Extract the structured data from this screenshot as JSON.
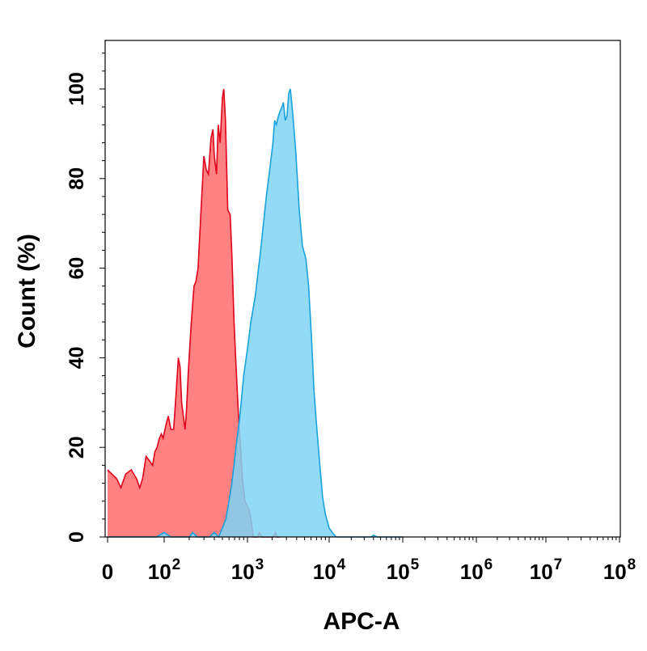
{
  "chart_data": {
    "type": "area",
    "title": "",
    "xlabel": "APC-A",
    "ylabel": "Count  (%)",
    "x_scale": "biexponential",
    "ylim": [
      0,
      100
    ],
    "grid": false,
    "legend": "none",
    "y_ticks": [
      "0",
      "20",
      "40",
      "60",
      "80",
      "100"
    ],
    "x_ticks": [
      {
        "value": 0,
        "base": "0",
        "exp": ""
      },
      {
        "value": 100,
        "base": "10",
        "exp": "2"
      },
      {
        "value": 1000,
        "base": "10",
        "exp": "3"
      },
      {
        "value": 10000,
        "base": "10",
        "exp": "4"
      },
      {
        "value": 100000,
        "base": "10",
        "exp": "5"
      },
      {
        "value": 1000000,
        "base": "10",
        "exp": "6"
      },
      {
        "value": 10000000,
        "base": "10",
        "exp": "7"
      },
      {
        "value": 100000000,
        "base": "10",
        "exp": "8"
      }
    ],
    "series": [
      {
        "color": "#ff6b6b",
        "stroke": "#e0001a",
        "points": [
          [
            0,
            15
          ],
          [
            5,
            13
          ],
          [
            8,
            11
          ],
          [
            12,
            14
          ],
          [
            18,
            15
          ],
          [
            25,
            13
          ],
          [
            30,
            11
          ],
          [
            35,
            13
          ],
          [
            42,
            18
          ],
          [
            50,
            17
          ],
          [
            58,
            16
          ],
          [
            65,
            19
          ],
          [
            72,
            20
          ],
          [
            80,
            22
          ],
          [
            88,
            23
          ],
          [
            95,
            22
          ],
          [
            105,
            25
          ],
          [
            112,
            27
          ],
          [
            120,
            24
          ],
          [
            130,
            24
          ],
          [
            140,
            33
          ],
          [
            148,
            40
          ],
          [
            155,
            38
          ],
          [
            162,
            30
          ],
          [
            170,
            27
          ],
          [
            178,
            24
          ],
          [
            185,
            28
          ],
          [
            195,
            37
          ],
          [
            210,
            47
          ],
          [
            228,
            56
          ],
          [
            240,
            57
          ],
          [
            255,
            60
          ],
          [
            275,
            72
          ],
          [
            300,
            85
          ],
          [
            320,
            82
          ],
          [
            340,
            81
          ],
          [
            365,
            89
          ],
          [
            385,
            91
          ],
          [
            400,
            85
          ],
          [
            425,
            81
          ],
          [
            445,
            92
          ],
          [
            470,
            88
          ],
          [
            500,
            98
          ],
          [
            520,
            100
          ],
          [
            545,
            93
          ],
          [
            580,
            73
          ],
          [
            620,
            72
          ],
          [
            650,
            63
          ],
          [
            690,
            48
          ],
          [
            730,
            38
          ],
          [
            780,
            27
          ],
          [
            820,
            21
          ],
          [
            870,
            13
          ],
          [
            930,
            8
          ],
          [
            990,
            7
          ],
          [
            1050,
            6
          ],
          [
            1100,
            4
          ],
          [
            1180,
            0
          ],
          [
            1260,
            0
          ],
          [
            1330,
            0
          ],
          [
            1400,
            1
          ],
          [
            1500,
            0
          ],
          [
            1800,
            0
          ],
          [
            2050,
            0
          ],
          [
            2200,
            1
          ],
          [
            2300,
            0
          ],
          [
            2500,
            0
          ]
        ]
      },
      {
        "color": "#7fd4f4",
        "stroke": "#1aa2db",
        "points": [
          [
            0,
            0
          ],
          [
            70,
            0
          ],
          [
            100,
            1
          ],
          [
            120,
            0
          ],
          [
            200,
            0
          ],
          [
            220,
            1
          ],
          [
            250,
            0
          ],
          [
            350,
            0
          ],
          [
            400,
            1
          ],
          [
            450,
            0
          ],
          [
            500,
            2
          ],
          [
            550,
            4
          ],
          [
            600,
            8
          ],
          [
            650,
            12
          ],
          [
            700,
            17
          ],
          [
            750,
            22
          ],
          [
            800,
            26
          ],
          [
            850,
            31
          ],
          [
            900,
            36
          ],
          [
            1000,
            42
          ],
          [
            1100,
            48
          ],
          [
            1250,
            54
          ],
          [
            1450,
            64
          ],
          [
            1700,
            76
          ],
          [
            1900,
            83
          ],
          [
            2050,
            88
          ],
          [
            2150,
            93
          ],
          [
            2250,
            92
          ],
          [
            2400,
            94
          ],
          [
            2500,
            95
          ],
          [
            2650,
            96
          ],
          [
            2750,
            97
          ],
          [
            2900,
            93
          ],
          [
            3050,
            94
          ],
          [
            3200,
            99
          ],
          [
            3350,
            100
          ],
          [
            3600,
            94
          ],
          [
            3900,
            86
          ],
          [
            4300,
            73
          ],
          [
            4700,
            65
          ],
          [
            5200,
            62
          ],
          [
            5600,
            56
          ],
          [
            6100,
            44
          ],
          [
            6500,
            33
          ],
          [
            7000,
            25
          ],
          [
            7700,
            16
          ],
          [
            8300,
            9
          ],
          [
            9000,
            5
          ],
          [
            10000,
            2
          ],
          [
            11000,
            1
          ],
          [
            12500,
            0
          ],
          [
            20000,
            0
          ],
          [
            37000,
            0
          ],
          [
            40000,
            0.4
          ],
          [
            45000,
            0
          ],
          [
            100000,
            0
          ]
        ]
      }
    ]
  }
}
